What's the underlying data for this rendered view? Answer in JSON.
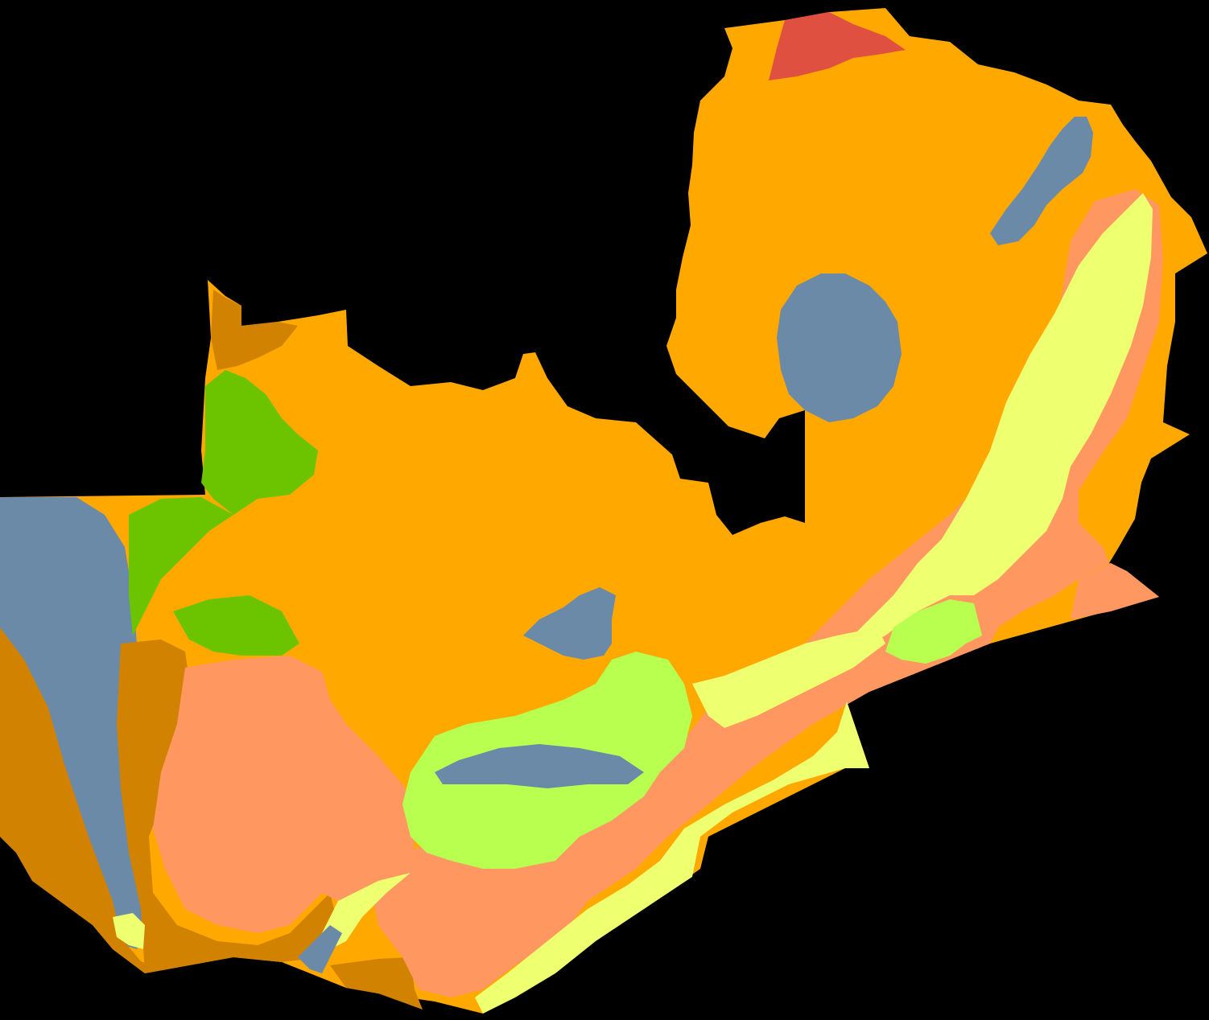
{
  "map": {
    "background_color": "#000000",
    "zone_colors": {
      "orange": "#FFA800",
      "salmon": "#FF9860",
      "dark-orange": "#D08200",
      "slate-blue": "#6A8AA8",
      "lime-green": "#6CC400",
      "light-green": "#B8FF50",
      "pale-yellow": "#EEFF70",
      "red": "#E05040"
    }
  }
}
